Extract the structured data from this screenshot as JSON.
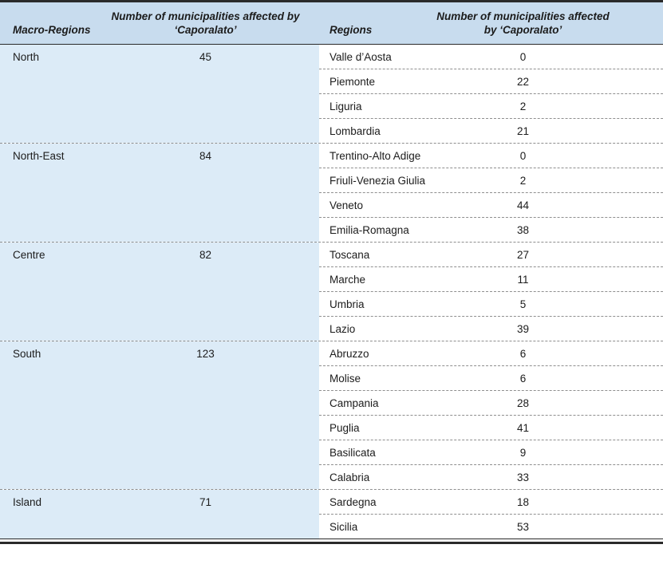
{
  "table": {
    "headers": {
      "macro_regions": "Macro-Regions",
      "municipalities_left": "Number of municipalities affected by ‘Caporalato’",
      "regions": "Regions",
      "municipalities_right": "Number of municipalities affected by ‘Caporalato’"
    },
    "groups": [
      {
        "macro": "North",
        "count": 45,
        "regions": [
          {
            "name": "Valle d’Aosta",
            "count": 0
          },
          {
            "name": "Piemonte",
            "count": 22
          },
          {
            "name": "Liguria",
            "count": 2
          },
          {
            "name": "Lombardia",
            "count": 21
          }
        ]
      },
      {
        "macro": "North-East",
        "count": 84,
        "regions": [
          {
            "name": "Trentino-Alto Adige",
            "count": 0
          },
          {
            "name": "Friuli-Venezia Giulia",
            "count": 2
          },
          {
            "name": "Veneto",
            "count": 44
          },
          {
            "name": "Emilia-Romagna",
            "count": 38
          }
        ]
      },
      {
        "macro": "Centre",
        "count": 82,
        "regions": [
          {
            "name": "Toscana",
            "count": 27
          },
          {
            "name": "Marche",
            "count": 11
          },
          {
            "name": "Umbria",
            "count": 5
          },
          {
            "name": "Lazio",
            "count": 39
          }
        ]
      },
      {
        "macro": "South",
        "count": 123,
        "regions": [
          {
            "name": "Abruzzo",
            "count": 6
          },
          {
            "name": "Molise",
            "count": 6
          },
          {
            "name": "Campania",
            "count": 28
          },
          {
            "name": "Puglia",
            "count": 41
          },
          {
            "name": "Basilicata",
            "count": 9
          },
          {
            "name": "Calabria",
            "count": 33
          }
        ]
      },
      {
        "macro": "Island",
        "count": 71,
        "regions": [
          {
            "name": "Sardegna",
            "count": 18
          },
          {
            "name": "Sicilia",
            "count": 53
          }
        ]
      }
    ]
  },
  "chart_data": {
    "type": "table",
    "columns": [
      "Macro-Regions",
      "Number of municipalities affected by ‘Caporalato’",
      "Regions",
      "Number of municipalities affected by ‘Caporalato’"
    ],
    "rows": [
      [
        "North",
        45,
        "Valle d’Aosta",
        0
      ],
      [
        "",
        "",
        "Piemonte",
        22
      ],
      [
        "",
        "",
        "Liguria",
        2
      ],
      [
        "",
        "",
        "Lombardia",
        21
      ],
      [
        "North-East",
        84,
        "Trentino-Alto Adige",
        0
      ],
      [
        "",
        "",
        "Friuli-Venezia Giulia",
        2
      ],
      [
        "",
        "",
        "Veneto",
        44
      ],
      [
        "",
        "",
        "Emilia-Romagna",
        38
      ],
      [
        "Centre",
        82,
        "Toscana",
        27
      ],
      [
        "",
        "",
        "Marche",
        11
      ],
      [
        "",
        "",
        "Umbria",
        5
      ],
      [
        "",
        "",
        "Lazio",
        39
      ],
      [
        "South",
        123,
        "Abruzzo",
        6
      ],
      [
        "",
        "",
        "Molise",
        6
      ],
      [
        "",
        "",
        "Campania",
        28
      ],
      [
        "",
        "",
        "Puglia",
        41
      ],
      [
        "",
        "",
        "Basilicata",
        9
      ],
      [
        "",
        "",
        "Calabria",
        33
      ],
      [
        "Island",
        71,
        "Sardegna",
        18
      ],
      [
        "",
        "",
        "Sicilia",
        53
      ]
    ]
  },
  "colors": {
    "header_bg": "#c8dcee",
    "macro_column_bg": "#dcebf7",
    "region_column_bg": "#ffffff",
    "border_dark": "#2a2a2a",
    "dashed_divider": "#8f8f8f"
  }
}
